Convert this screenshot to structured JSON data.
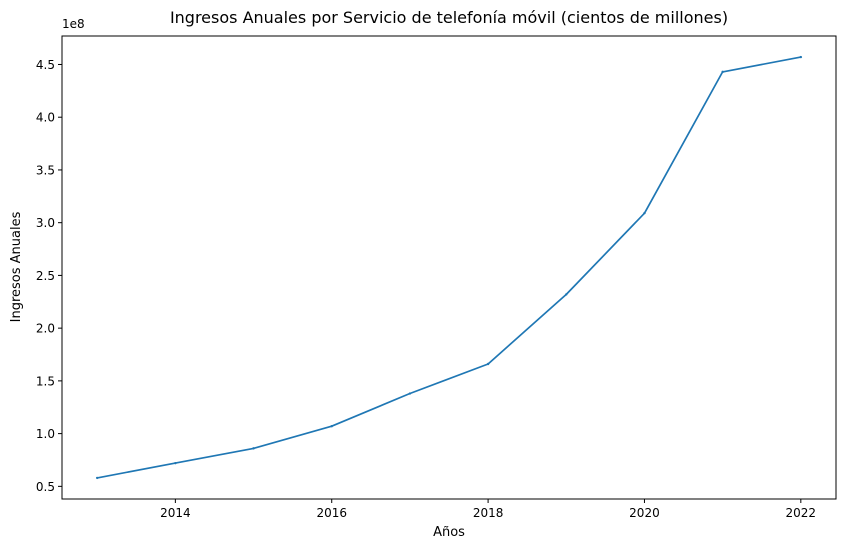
{
  "chart_data": {
    "type": "line",
    "title": "Ingresos Anuales por Servicio de telefonía móvil (cientos de millones)",
    "xlabel": "Años",
    "ylabel": "Ingresos Anuales",
    "y_offset_label": "1e8",
    "xlim": [
      2012.55,
      2022.45
    ],
    "ylim": [
      0.38,
      4.77
    ],
    "x_ticks": [
      2014,
      2016,
      2018,
      2020,
      2022
    ],
    "x_tick_labels": [
      "2014",
      "2016",
      "2018",
      "2020",
      "2022"
    ],
    "y_ticks": [
      0.5,
      1.0,
      1.5,
      2.0,
      2.5,
      3.0,
      3.5,
      4.0,
      4.5
    ],
    "y_tick_labels": [
      "0.5",
      "1.0",
      "1.5",
      "2.0",
      "2.5",
      "3.0",
      "3.5",
      "4.0",
      "4.5"
    ],
    "grid": false,
    "legend": "none",
    "series": [
      {
        "color": "#1f77b4",
        "x": [
          2013,
          2014,
          2015,
          2016,
          2017,
          2018,
          2019,
          2020,
          2021,
          2022
        ],
        "y": [
          0.58,
          0.72,
          0.86,
          1.07,
          1.38,
          1.66,
          2.32,
          3.09,
          4.43,
          4.57
        ]
      }
    ]
  }
}
